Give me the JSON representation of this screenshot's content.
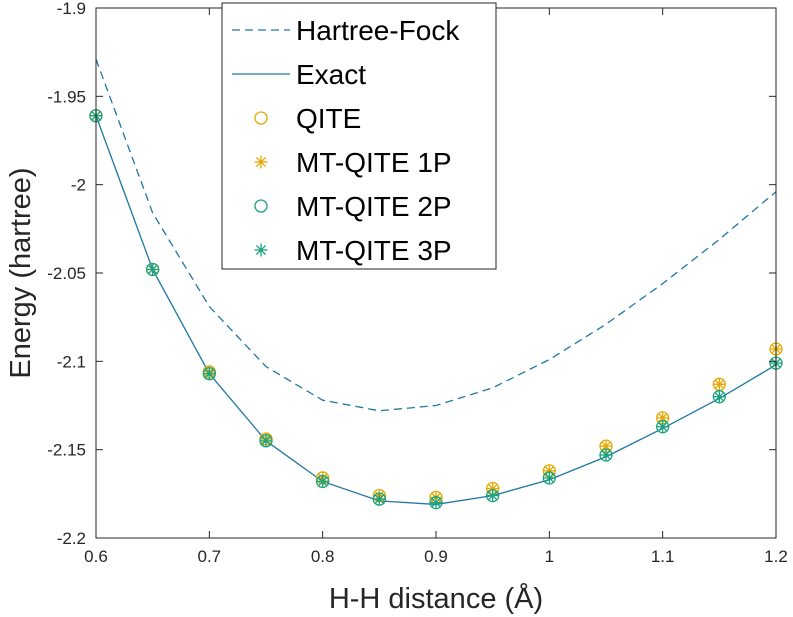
{
  "chart_data": {
    "type": "line",
    "title": "",
    "xlabel": "H-H distance (Å)",
    "ylabel": "Energy (hartree)",
    "xlim": [
      0.6,
      1.2
    ],
    "ylim": [
      -2.2,
      -1.9
    ],
    "xticks": [
      0.6,
      0.7,
      0.8,
      0.9,
      1.0,
      1.1,
      1.2
    ],
    "xtick_labels": [
      "0.6",
      "0.7",
      "0.8",
      "0.9",
      "1",
      "1.1",
      "1.2"
    ],
    "yticks": [
      -2.2,
      -2.15,
      -2.1,
      -2.05,
      -2.0,
      -1.95,
      -1.9
    ],
    "ytick_labels": [
      "-2.2",
      "-2.15",
      "-2.1",
      "-2.05",
      "-2",
      "-1.95",
      "-1.9"
    ],
    "grid": false,
    "legend_position": "top-center",
    "x": [
      0.6,
      0.65,
      0.7,
      0.75,
      0.8,
      0.85,
      0.9,
      0.95,
      1.0,
      1.05,
      1.1,
      1.15,
      1.2
    ],
    "series": [
      {
        "name": "Hartree-Fock",
        "style": "dashed-line",
        "color": "#1f77a4",
        "values": [
          -1.929,
          -2.016,
          -2.069,
          -2.103,
          -2.122,
          -2.128,
          -2.125,
          -2.115,
          -2.099,
          -2.079,
          -2.056,
          -2.031,
          -2.004
        ]
      },
      {
        "name": "Exact",
        "style": "solid-line",
        "color": "#1f77a4",
        "values": [
          -1.961,
          -2.048,
          -2.107,
          -2.145,
          -2.168,
          -2.179,
          -2.181,
          -2.176,
          -2.167,
          -2.154,
          -2.138,
          -2.121,
          -2.102
        ]
      },
      {
        "name": "QITE",
        "style": "circle",
        "color": "#e6a800",
        "values": [
          -1.961,
          -2.048,
          -2.106,
          -2.144,
          -2.166,
          -2.176,
          -2.177,
          -2.172,
          -2.162,
          -2.148,
          -2.132,
          -2.113,
          -2.093
        ]
      },
      {
        "name": "MT-QITE 1P",
        "style": "asterisk",
        "color": "#e6a800",
        "values": [
          -1.961,
          -2.048,
          -2.106,
          -2.144,
          -2.166,
          -2.176,
          -2.177,
          -2.172,
          -2.162,
          -2.148,
          -2.132,
          -2.113,
          -2.093
        ]
      },
      {
        "name": "MT-QITE 2P",
        "style": "circle",
        "color": "#1aa37f",
        "values": [
          -1.961,
          -2.048,
          -2.107,
          -2.145,
          -2.168,
          -2.178,
          -2.18,
          -2.176,
          -2.166,
          -2.153,
          -2.137,
          -2.12,
          -2.101
        ]
      },
      {
        "name": "MT-QITE 3P",
        "style": "asterisk",
        "color": "#1aa37f",
        "values": [
          -1.961,
          -2.048,
          -2.107,
          -2.145,
          -2.168,
          -2.178,
          -2.18,
          -2.176,
          -2.166,
          -2.153,
          -2.137,
          -2.12,
          -2.101
        ]
      }
    ]
  }
}
